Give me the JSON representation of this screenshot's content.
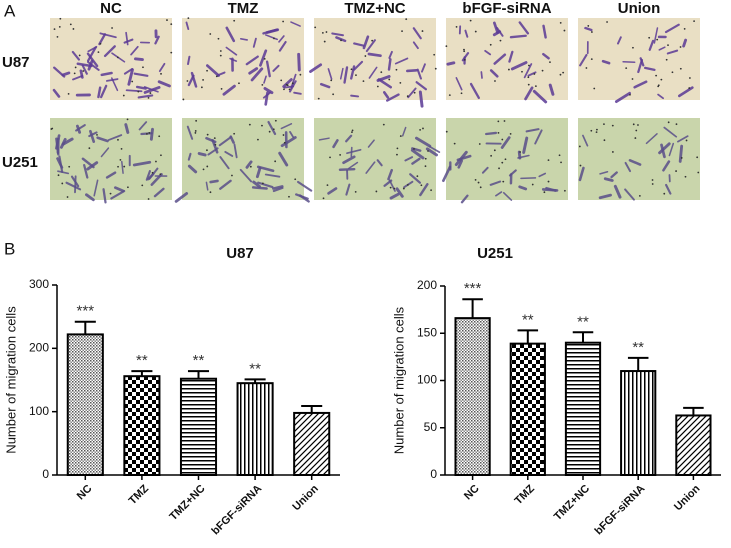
{
  "panel_labels": [
    "A",
    "B"
  ],
  "micrographs": {
    "columns": [
      "NC",
      "TMZ",
      "TMZ+NC",
      "bFGF-siRNA",
      "Union"
    ],
    "rows": [
      "U87",
      "U251"
    ]
  },
  "chart_data": [
    {
      "type": "bar",
      "title": "U87",
      "y_label": "Number of migration cells",
      "categories": [
        "NC",
        "TMZ",
        "TMZ+NC",
        "bFGF-siRNA",
        "Union"
      ],
      "values": [
        222,
        156,
        152,
        145,
        98
      ],
      "errors": [
        20,
        8,
        12,
        6,
        11
      ],
      "annotations": [
        "***",
        "**",
        "**",
        "**",
        null
      ],
      "patterns": [
        "crosshatch",
        "checker",
        "horizontal",
        "vertical",
        "diagonal"
      ],
      "ylim": [
        0,
        300
      ],
      "yticks": [
        0,
        100,
        200,
        300
      ]
    },
    {
      "type": "bar",
      "title": "U251",
      "y_label": "Number of migration cells",
      "categories": [
        "NC",
        "TMZ",
        "TMZ+NC",
        "bFGF-siRNA",
        "Union"
      ],
      "values": [
        166,
        139,
        140,
        110,
        63
      ],
      "errors": [
        20,
        14,
        11,
        14,
        8
      ],
      "annotations": [
        "***",
        "**",
        "**",
        "**",
        null
      ],
      "patterns": [
        "crosshatch",
        "checker",
        "horizontal",
        "vertical",
        "diagonal"
      ],
      "ylim": [
        0,
        200
      ],
      "yticks": [
        0,
        50,
        100,
        150,
        200
      ]
    }
  ]
}
